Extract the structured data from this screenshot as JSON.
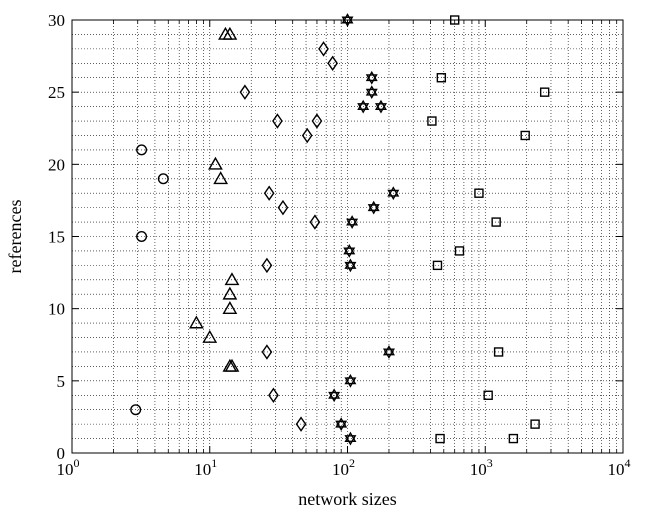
{
  "chart_data": {
    "type": "scatter",
    "title": "",
    "xlabel": "network sizes",
    "ylabel": "references",
    "xscale": "log",
    "xlim": [
      1,
      10000
    ],
    "ylim": [
      0,
      30
    ],
    "grid": true,
    "x_ticks": [
      {
        "base": "10",
        "exp": "0",
        "value": 1
      },
      {
        "base": "10",
        "exp": "1",
        "value": 10
      },
      {
        "base": "10",
        "exp": "2",
        "value": 100
      },
      {
        "base": "10",
        "exp": "3",
        "value": 1000
      },
      {
        "base": "10",
        "exp": "4",
        "value": 10000
      }
    ],
    "y_ticks": [
      {
        "label": "0",
        "value": 0
      },
      {
        "label": "5",
        "value": 5
      },
      {
        "label": "10",
        "value": 10
      },
      {
        "label": "15",
        "value": 15
      },
      {
        "label": "20",
        "value": 20
      },
      {
        "label": "25",
        "value": 25
      },
      {
        "label": "30",
        "value": 30
      }
    ],
    "series": [
      {
        "marker": "circle",
        "points": [
          [
            2.9,
            3
          ],
          [
            3.2,
            15
          ],
          [
            3.2,
            21
          ],
          [
            4.6,
            19
          ]
        ]
      },
      {
        "marker": "triangle",
        "points": [
          [
            13,
            29
          ],
          [
            14,
            29
          ],
          [
            8,
            9
          ],
          [
            10,
            8
          ],
          [
            11,
            20
          ],
          [
            12,
            19
          ],
          [
            14,
            6
          ],
          [
            14.5,
            6
          ],
          [
            14,
            10
          ],
          [
            14,
            11
          ],
          [
            14.5,
            12
          ]
        ]
      },
      {
        "marker": "diamond",
        "points": [
          [
            67,
            28
          ],
          [
            78,
            27
          ],
          [
            18,
            25
          ],
          [
            31,
            23
          ],
          [
            60,
            23
          ],
          [
            51,
            22
          ],
          [
            27,
            18
          ],
          [
            34,
            17
          ],
          [
            58,
            16
          ],
          [
            26,
            13
          ],
          [
            26,
            7
          ],
          [
            29,
            4
          ],
          [
            46,
            2
          ]
        ]
      },
      {
        "marker": "star",
        "points": [
          [
            100,
            30
          ],
          [
            150,
            26
          ],
          [
            150,
            25
          ],
          [
            130,
            24
          ],
          [
            175,
            24
          ],
          [
            215,
            18
          ],
          [
            155,
            17
          ],
          [
            108,
            16
          ],
          [
            103,
            14
          ],
          [
            105,
            13
          ],
          [
            200,
            7
          ],
          [
            105,
            5
          ],
          [
            80,
            4
          ],
          [
            90,
            2
          ],
          [
            105,
            1
          ]
        ]
      },
      {
        "marker": "square",
        "points": [
          [
            600,
            30
          ],
          [
            480,
            26
          ],
          [
            2700,
            25
          ],
          [
            410,
            23
          ],
          [
            1950,
            22
          ],
          [
            900,
            18
          ],
          [
            1200,
            16
          ],
          [
            650,
            14
          ],
          [
            450,
            13
          ],
          [
            1250,
            7
          ],
          [
            1050,
            4
          ],
          [
            2300,
            2
          ],
          [
            1600,
            1
          ],
          [
            470,
            1
          ]
        ]
      }
    ]
  }
}
